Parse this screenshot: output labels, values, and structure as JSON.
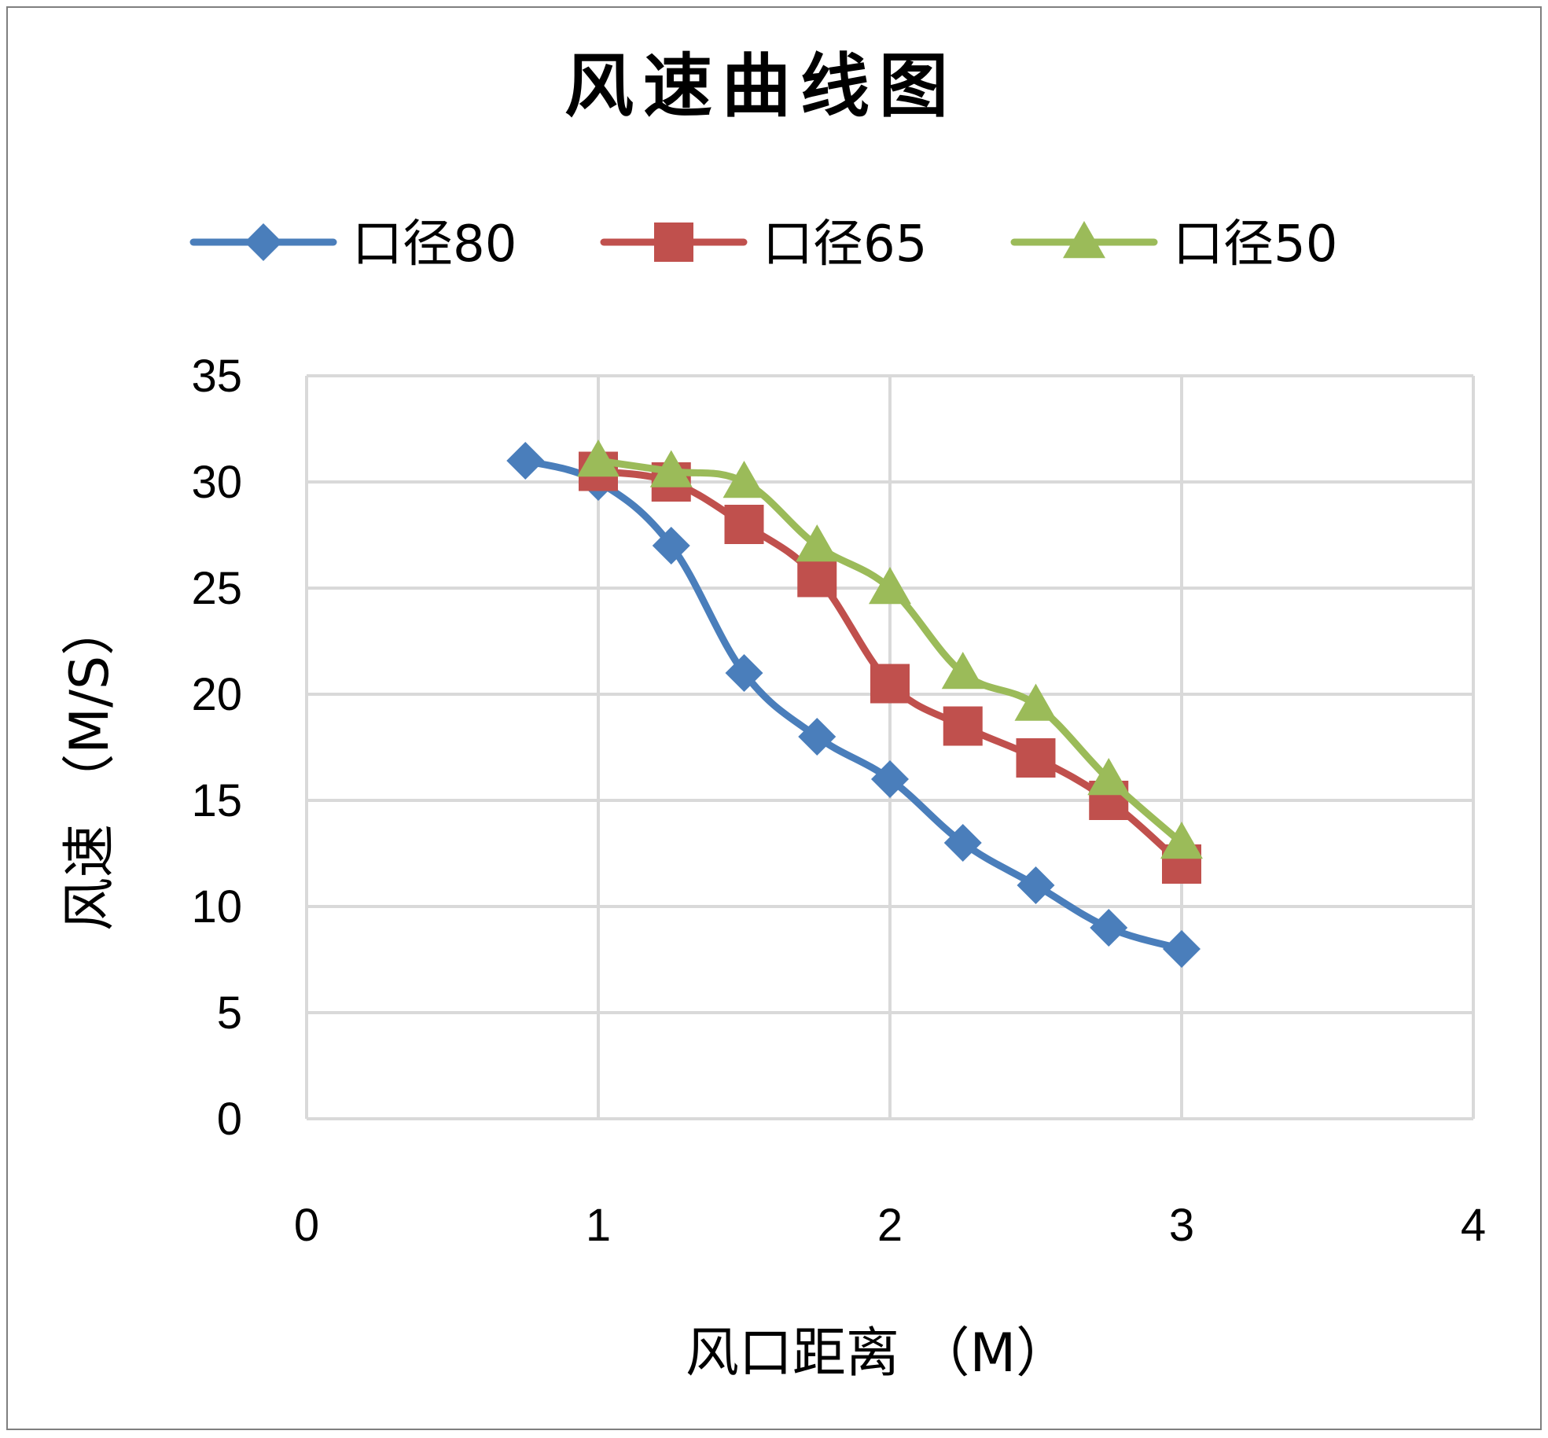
{
  "chart_data": {
    "type": "line",
    "title": "风速曲线图",
    "xlabel": "风口距离 （M）",
    "ylabel": "风速 （M/S）",
    "xlim": [
      0,
      4
    ],
    "ylim": [
      0,
      35
    ],
    "xticks": [
      0,
      1,
      2,
      3,
      4
    ],
    "yticks": [
      0,
      5,
      10,
      15,
      20,
      25,
      30,
      35
    ],
    "grid": true,
    "legend_position": "top",
    "series": [
      {
        "name": "口径80",
        "color": "#4a7ebb",
        "marker": "diamond",
        "x": [
          0.75,
          1.0,
          1.25,
          1.5,
          1.75,
          2.0,
          2.25,
          2.5,
          2.75,
          3.0
        ],
        "y": [
          31.0,
          30.0,
          27.0,
          21.0,
          18.0,
          16.0,
          13.0,
          11.0,
          9.0,
          8.0
        ]
      },
      {
        "name": "口径65",
        "color": "#c0504d",
        "marker": "square",
        "x": [
          1.0,
          1.25,
          1.5,
          1.75,
          2.0,
          2.25,
          2.5,
          2.75,
          3.0
        ],
        "y": [
          30.5,
          30.0,
          28.0,
          25.5,
          20.5,
          18.5,
          17.0,
          15.0,
          12.0
        ]
      },
      {
        "name": "口径50",
        "color": "#9bbb59",
        "marker": "triangle",
        "x": [
          1.0,
          1.25,
          1.5,
          1.75,
          2.0,
          2.25,
          2.5,
          2.75,
          3.0
        ],
        "y": [
          31.0,
          30.5,
          30.0,
          27.0,
          25.0,
          21.0,
          19.5,
          16.0,
          13.0
        ]
      }
    ]
  }
}
